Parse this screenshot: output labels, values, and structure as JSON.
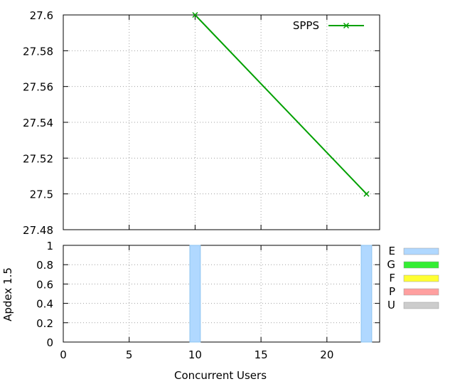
{
  "chart_data": [
    {
      "type": "line",
      "xlim": [
        0,
        24
      ],
      "ylim": [
        27.48,
        27.6
      ],
      "yticks": [
        "27.48",
        "27.5",
        "27.52",
        "27.54",
        "27.56",
        "27.58",
        "27.6"
      ],
      "grid": true,
      "legend_position": "top-right",
      "series": [
        {
          "name": "SPPS",
          "color": "#00a000",
          "marker": "x",
          "x": [
            10,
            23
          ],
          "y": [
            27.6,
            27.5
          ]
        }
      ]
    },
    {
      "type": "bar",
      "xlim": [
        0,
        24
      ],
      "ylim": [
        0,
        1
      ],
      "xticks": [
        "0",
        "5",
        "10",
        "15",
        "20"
      ],
      "yticks": [
        "0",
        "0.2",
        "0.4",
        "0.6",
        "0.8",
        "1"
      ],
      "xlabel": "Concurrent Users",
      "ylabel": "Apdex 1.5",
      "grid": true,
      "bars": [
        {
          "x": 10,
          "value": 1,
          "category": "E"
        },
        {
          "x": 23,
          "value": 1,
          "category": "E"
        }
      ],
      "legend": [
        {
          "label": "E",
          "color": "#b0d8ff"
        },
        {
          "label": "G",
          "color": "#33ee33"
        },
        {
          "label": "F",
          "color": "#ffff33"
        },
        {
          "label": "P",
          "color": "#ff9f9f"
        },
        {
          "label": "U",
          "color": "#cccccc"
        }
      ]
    }
  ]
}
